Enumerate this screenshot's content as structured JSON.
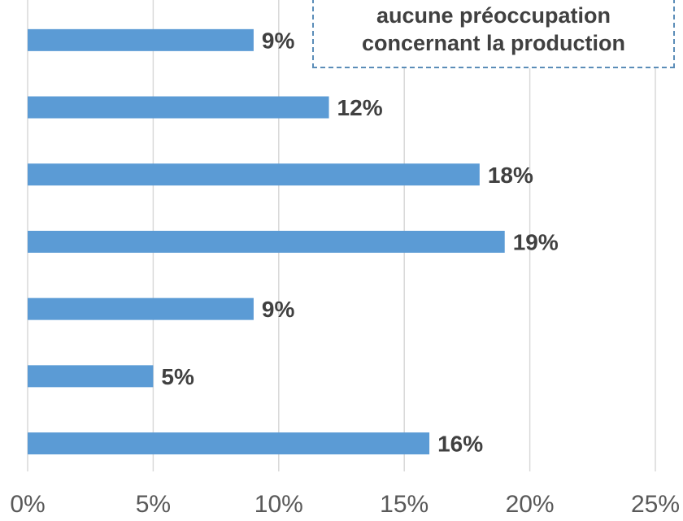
{
  "chart_data": {
    "type": "bar",
    "orientation": "horizontal",
    "values": [
      9,
      12,
      18,
      19,
      9,
      5,
      16
    ],
    "data_labels": [
      "9%",
      "12%",
      "18%",
      "19%",
      "9%",
      "5%",
      "16%"
    ],
    "xlim": [
      0,
      25
    ],
    "x_ticks": [
      "0%",
      "5%",
      "10%",
      "15%",
      "20%",
      "25%"
    ],
    "grid": "vertical",
    "bar_color": "#5b9bd5",
    "annotation": [
      "aucune préoccupation",
      "concernant la production"
    ]
  }
}
